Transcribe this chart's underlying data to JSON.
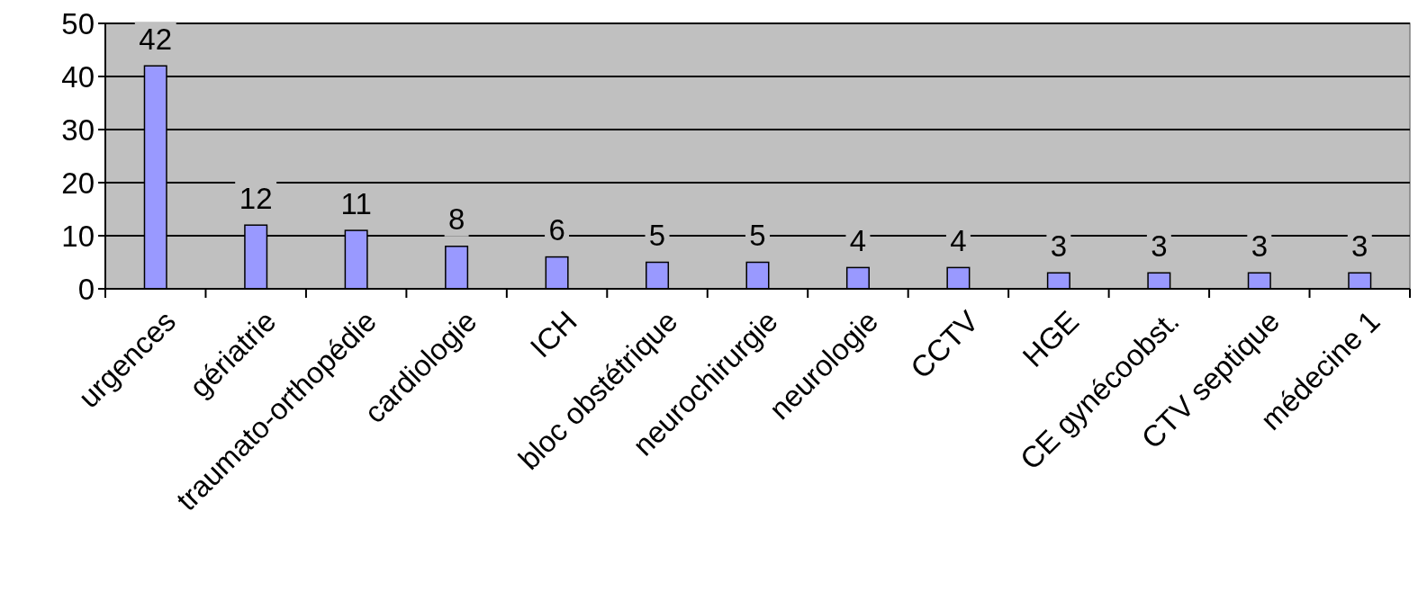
{
  "chart_data": {
    "type": "bar",
    "categories": [
      "urgences",
      "gériatrie",
      "traumato-orthopédie",
      "cardiologie",
      "ICH",
      "bloc obstétrique",
      "neurochirurgie",
      "neurologie",
      "CCTV",
      "HGE",
      "CE gynécoobst.",
      "CTV septique",
      "médecine 1"
    ],
    "values": [
      42,
      12,
      11,
      8,
      6,
      5,
      5,
      4,
      4,
      3,
      3,
      3,
      3
    ],
    "color": "#9999ff",
    "ylim": [
      0,
      50
    ],
    "yticks": [
      0,
      10,
      20,
      30,
      40,
      50
    ],
    "grid": "y",
    "data_labels": true
  }
}
